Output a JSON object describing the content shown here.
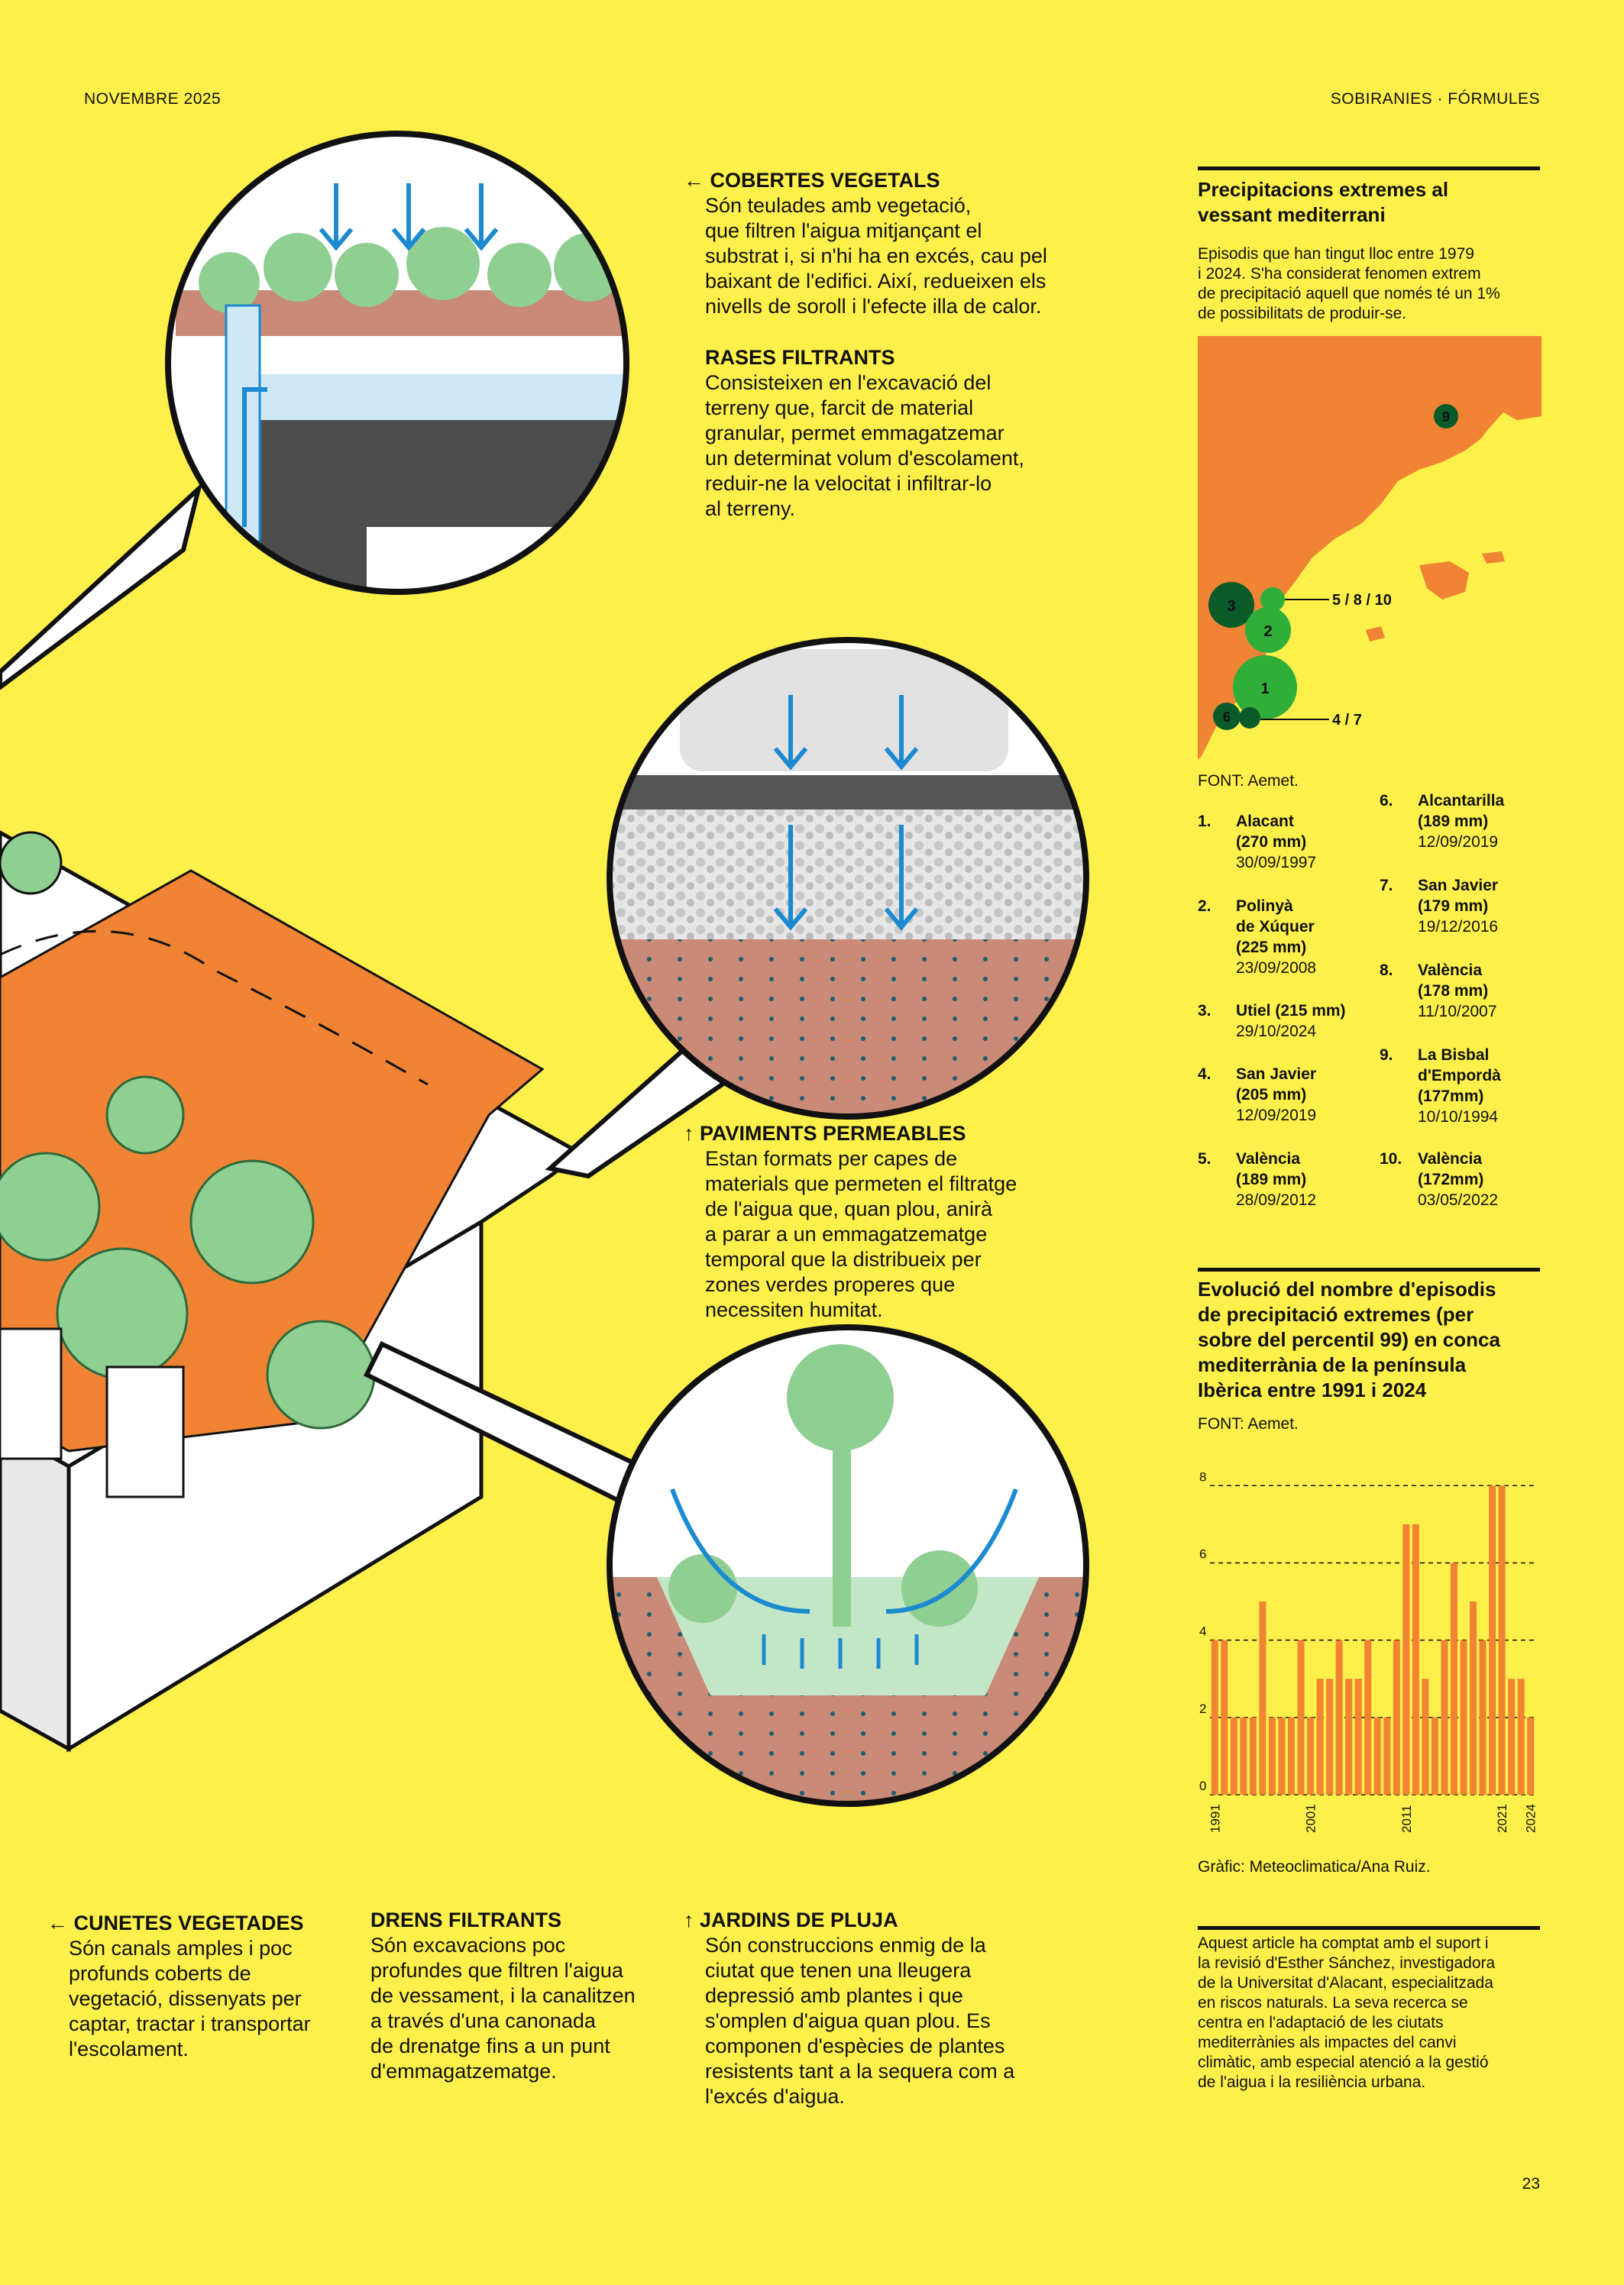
{
  "header": {
    "date": "NOVEMBRE 2025",
    "section": "SOBIRANIES · FÓRMULES"
  },
  "page_number": "23",
  "sections": {
    "cobertes": {
      "title": "COBERTES VEGETALS",
      "body": [
        "Són teulades amb vegetació,",
        "que filtren l'aigua mitjançant el",
        "substrat i, si n'hi ha en excés, cau pel",
        "baixant de l'edifici. Així, redueixen els",
        "nivells de soroll i l'efecte illa de calor."
      ]
    },
    "rases": {
      "title": "RASES FILTRANTS",
      "body": [
        "Consisteixen en l'excavació del",
        "terreny que, farcit de material",
        "granular, permet emmagatzemar",
        "un determinat volum d'escolament,",
        "reduir-ne la velocitat i infiltrar-lo",
        "al terreny."
      ]
    },
    "paviments": {
      "title": "PAVIMENTS PERMEABLES",
      "body": [
        "Estan formats per capes de",
        "materials que permeten el filtratge",
        "de l'aigua que, quan plou, anirà",
        "a parar a un emmagatzematge",
        "temporal que la distribueix per",
        "zones verdes properes que",
        "necessiten humitat."
      ]
    },
    "cunetes": {
      "title": "CUNETES VEGETADES",
      "body": [
        "Són canals amples i poc",
        "profunds coberts de",
        "vegetació, dissenyats per",
        "captar, tractar i transportar",
        "l'escolament."
      ]
    },
    "drens": {
      "title": "DRENS FILTRANTS",
      "body": [
        "Són excavacions poc",
        "profundes que filtren l'aigua",
        "de vessament, i la canalitzen",
        "a través d'una canonada",
        "de drenatge fins a un punt",
        "d'emmagatzematge."
      ]
    },
    "jardins": {
      "title": "JARDINS DE PLUJA",
      "body": [
        "Són construccions enmig de la",
        "ciutat que tenen una lleugera",
        "depressió amb plantes i que",
        "s'omplen d'aigua quan plou. Es",
        "componen d'espècies de plantes",
        "resistents tant a la sequera com a",
        "l'excés d'aigua."
      ]
    }
  },
  "arrows": {
    "left": "←",
    "up": "↑"
  },
  "map": {
    "title": [
      "Precipitacions extremes al",
      "vessant mediterrani"
    ],
    "description": [
      "Episodis que han tingut lloc entre 1979",
      "i 2024.  S'ha considerat fenomen extrem",
      "de precipitació aquell que només té un 1%",
      "de possibilitats de produir-se."
    ],
    "source": "FONT: Aemet.",
    "labels": {
      "l9": "9",
      "l3": "3",
      "l2": "2",
      "l1": "1",
      "l6": "6",
      "l5810": "5 / 8 / 10",
      "l47": "4 / 7"
    },
    "colors": {
      "land": "#f08434",
      "bubble_dark": "#0a5a2a",
      "bubble_light": "#2fae3a"
    }
  },
  "ranking": [
    {
      "n": "1.",
      "city": [
        "Alacant",
        "(270 mm)"
      ],
      "date": "30/09/1997"
    },
    {
      "n": "2.",
      "city": [
        "Polinyà",
        "de Xúquer",
        "(225 mm)"
      ],
      "date": "23/09/2008"
    },
    {
      "n": "3.",
      "city": [
        "Utiel (215 mm)"
      ],
      "date": "29/10/2024"
    },
    {
      "n": "4.",
      "city": [
        "San Javier",
        "(205 mm)"
      ],
      "date": "12/09/2019"
    },
    {
      "n": "5.",
      "city": [
        "València",
        "(189 mm)"
      ],
      "date": "28/09/2012"
    },
    {
      "n": "6.",
      "city": [
        "Alcantarilla",
        "(189 mm)"
      ],
      "date": "12/09/2019"
    },
    {
      "n": "7.",
      "city": [
        "San Javier",
        "(179 mm)"
      ],
      "date": "19/12/2016"
    },
    {
      "n": "8.",
      "city": [
        "València",
        "(178 mm)"
      ],
      "date": "11/10/2007"
    },
    {
      "n": "9.",
      "city": [
        "La Bisbal",
        "d'Empordà",
        "(177mm)"
      ],
      "date": "10/10/1994"
    },
    {
      "n": "10.",
      "city": [
        "València",
        "(172mm)"
      ],
      "date": "03/05/2022"
    }
  ],
  "bar": {
    "title": [
      "Evolució del nombre d'episodis",
      "de precipitació extremes (per",
      "sobre del percentil 99) en conca",
      "mediterrània de la península",
      "Ibèrica entre 1991 i 2024"
    ],
    "source": "FONT: Aemet.",
    "credit": "Gràfic: Meteoclimatica/Ana Ruiz."
  },
  "chart_data": {
    "type": "bar",
    "title": "Evolució del nombre d'episodis de precipitació extremes (per sobre del percentil 99) en conca mediterrània de la península Ibèrica entre 1991 i 2024",
    "categories": [
      "1991",
      "1992",
      "1993",
      "1994",
      "1995",
      "1996",
      "1997",
      "1998",
      "1999",
      "2000",
      "2001",
      "2002",
      "2003",
      "2004",
      "2005",
      "2006",
      "2007",
      "2008",
      "2009",
      "2010",
      "2011",
      "2012",
      "2013",
      "2014",
      "2015",
      "2016",
      "2017",
      "2018",
      "2019",
      "2020",
      "2021",
      "2022",
      "2023",
      "2024"
    ],
    "values": [
      4,
      4,
      2,
      2,
      2,
      5,
      2,
      2,
      2,
      4,
      2,
      3,
      3,
      4,
      3,
      3,
      4,
      2,
      2,
      4,
      7,
      7,
      3,
      2,
      4,
      6,
      4,
      5,
      4,
      8,
      8,
      3,
      3,
      2
    ],
    "yticks": [
      0,
      2,
      4,
      6,
      8
    ],
    "xticks": [
      "1991",
      "2001",
      "2011",
      "2021",
      "2024"
    ],
    "ylim": [
      0,
      8.5
    ],
    "color": "#f08434"
  },
  "footnote": [
    "Aquest article ha comptat amb el suport i",
    "la revisió d'Esther Sánchez, investigadora",
    "de la Universitat d'Alacant, especialitzada",
    "en riscos naturals. La seva recerca se",
    "centra en l'adaptació de les ciutats",
    "mediterrànies als impactes del canvi",
    "climàtic, amb especial atenció a la gestió",
    "de l'aigua i la resiliència urbana."
  ]
}
